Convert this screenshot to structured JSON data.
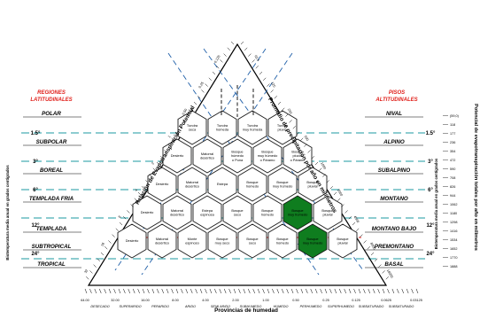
{
  "headers": {
    "left_line1": "REGIONES",
    "left_line2": "LATITUDINALES",
    "right_line1": "PISOS",
    "right_line2": "ALTITUDINALES"
  },
  "bands": [
    {
      "left": "POLAR",
      "right": "NIVAL"
    },
    {
      "left": "SUBPOLAR",
      "right": "ALPINO"
    },
    {
      "left": "BOREAL",
      "right": "SUBALPINO"
    },
    {
      "left": "TEMPLADA FRIA",
      "right": "MONTANO"
    },
    {
      "left": "TEMPLADA",
      "right": "MONTANO BAJO"
    },
    {
      "left": "SUBTROPICAL",
      "right": "PREMONTANO"
    },
    {
      "left": "TROPICAL",
      "right": "BASAL"
    }
  ],
  "temps_left": [
    "1.5°",
    "3°",
    "6°",
    "12°",
    "24°"
  ],
  "temps_right": [
    "1.5°",
    "3°",
    "6°",
    "12°",
    "24°"
  ],
  "left_side_title": "Biotemperatura media anual en grados centígrados",
  "right_side_title": "Biotemperatura media anual en grados centígrados",
  "far_right_title": "Potencial de evapotranspiración totales por año en milímetros",
  "pet_ticks": [
    "(59,0)",
    "118",
    "177",
    "236",
    "354",
    "472",
    "590",
    "708",
    "826",
    "944",
    "1062",
    "1180",
    "1298",
    "1416",
    "1534",
    "1652",
    "1770",
    "1888"
  ],
  "left_axis_title": "Relación de Evapotranspiración Potencial",
  "right_axis_title": "Promedio de precipitación por año en milímetros",
  "bottom_axis_title": "Provincias de humedad",
  "bottom_ratio_ticks": [
    "64.00",
    "32.00",
    "16.00",
    "8.00",
    "4.00",
    "2.00",
    "1.00",
    "0.50",
    "0.25",
    "0.125",
    "0.0625",
    "0.03125"
  ],
  "provinces": [
    "DESECADO",
    "SUPERARIDO",
    "PERARIDO",
    "ARIDO",
    "SEMI ARIDO",
    "SUBHUMEDO",
    "HUMEDO",
    "PERHUMEDO",
    "SUPERHUMEDO",
    "SUBSATURADO",
    "SUBSATURADO"
  ],
  "left_edge_ticks": [
    "0.125",
    "0.25",
    "0.50",
    "1",
    "2",
    "4",
    "8",
    "16",
    "32"
  ],
  "right_edge_ticks": [
    "62.5",
    "125",
    "250",
    "500",
    "1000",
    "2000",
    "4000",
    "8000",
    "16000"
  ],
  "zones": [
    {
      "row": 1,
      "col": 0,
      "lines": [
        "Tundra",
        "seca"
      ]
    },
    {
      "row": 1,
      "col": 1,
      "lines": [
        "Tundra",
        "húmeda"
      ]
    },
    {
      "row": 1,
      "col": 2,
      "lines": [
        "Tundra",
        "muy húmeda"
      ]
    },
    {
      "row": 1,
      "col": 3,
      "lines": [
        "Tundra",
        "pluvial"
      ]
    },
    {
      "row": 2,
      "col": 0,
      "lines": [
        "Desierto"
      ]
    },
    {
      "row": 2,
      "col": 1,
      "lines": [
        "Matorral",
        "desértico"
      ]
    },
    {
      "row": 2,
      "col": 2,
      "lines": [
        "Bosque",
        "húmedo",
        "o Puna"
      ]
    },
    {
      "row": 2,
      "col": 3,
      "lines": [
        "Bosque",
        "muy húmedo",
        "o Páramo"
      ]
    },
    {
      "row": 2,
      "col": 4,
      "lines": [
        "Bosque",
        "pluvial",
        "o Páramo"
      ]
    },
    {
      "row": 3,
      "col": 0,
      "lines": [
        "Desierto"
      ]
    },
    {
      "row": 3,
      "col": 1,
      "lines": [
        "Matorral",
        "desértico"
      ]
    },
    {
      "row": 3,
      "col": 2,
      "lines": [
        "Estepa"
      ]
    },
    {
      "row": 3,
      "col": 3,
      "lines": [
        "Bosque",
        "húmedo"
      ]
    },
    {
      "row": 3,
      "col": 4,
      "lines": [
        "Bosque",
        "muy húmedo"
      ]
    },
    {
      "row": 3,
      "col": 5,
      "lines": [
        "Bosque",
        "pluvial"
      ]
    },
    {
      "row": 4,
      "col": 0,
      "lines": [
        "Desierto"
      ]
    },
    {
      "row": 4,
      "col": 1,
      "lines": [
        "Matorral",
        "desértico"
      ]
    },
    {
      "row": 4,
      "col": 2,
      "lines": [
        "Estepa",
        "espinosa"
      ]
    },
    {
      "row": 4,
      "col": 3,
      "lines": [
        "Bosque",
        "seco"
      ]
    },
    {
      "row": 4,
      "col": 4,
      "lines": [
        "Bosque",
        "húmedo"
      ]
    },
    {
      "row": 4,
      "col": 5,
      "lines": [
        "Bosque",
        "muy húmedo"
      ]
    },
    {
      "row": 4,
      "col": 6,
      "lines": [
        "Bosque",
        "pluvial"
      ]
    },
    {
      "row": 5,
      "col": 0,
      "lines": [
        "Desierto"
      ]
    },
    {
      "row": 5,
      "col": 1,
      "lines": [
        "Matorral",
        "desértico"
      ]
    },
    {
      "row": 5,
      "col": 2,
      "lines": [
        "Monte",
        "espinoso"
      ]
    },
    {
      "row": 5,
      "col": 3,
      "lines": [
        "Bosque",
        "muy seco"
      ]
    },
    {
      "row": 5,
      "col": 4,
      "lines": [
        "Bosque",
        "seco"
      ]
    },
    {
      "row": 5,
      "col": 5,
      "lines": [
        "Bosque",
        "húmedo"
      ]
    },
    {
      "row": 5,
      "col": 6,
      "lines": [
        "Bosque",
        "muy húmedo"
      ]
    },
    {
      "row": 5,
      "col": 7,
      "lines": [
        "Bosque",
        "pluvial"
      ]
    }
  ],
  "colors": {
    "highlight": "#0f7d1f",
    "dashed_blue": "#1f5fa8",
    "dashed_red": "#e0201b",
    "band_teal": "#1b9aa0",
    "header_red": "#e0201b"
  }
}
